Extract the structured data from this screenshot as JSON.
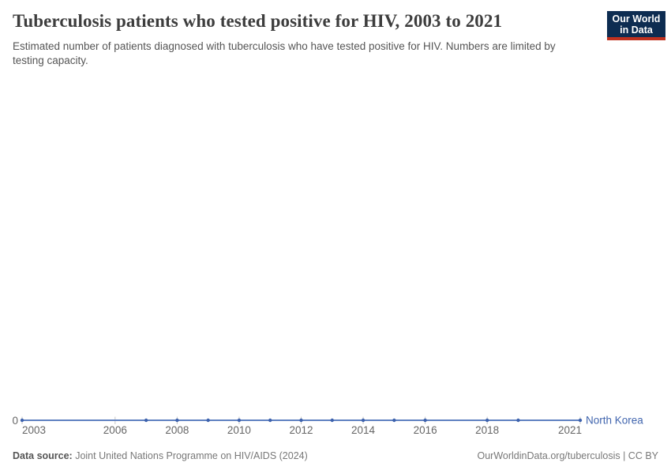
{
  "header": {
    "title": "Tuberculosis patients who tested positive for HIV, 2003 to 2021",
    "subtitle": "Estimated number of patients diagnosed with tuberculosis who have tested positive for HIV. Numbers are limited by testing capacity."
  },
  "logo": {
    "line1": "Our World",
    "line2": "in Data"
  },
  "footer": {
    "source_label": "Data source:",
    "source_text": " Joint United Nations Programme on HIV/AIDS (2024)",
    "rights": "OurWorldinData.org/tuberculosis | CC BY"
  },
  "colors": {
    "line": "#6081c1",
    "marker": "#3d62ad",
    "entity_label": "#4165ae",
    "tick_mark": "#c6c6c6",
    "tick_label": "#666666",
    "zero_label": "#666666",
    "logo_bg": "#0d2c51",
    "logo_stripe": "#c0311f"
  },
  "chart_data": {
    "type": "line",
    "title": "Tuberculosis patients who tested positive for HIV, 2003 to 2021",
    "xlabel": "",
    "ylabel": "",
    "xlim": [
      2003,
      2021
    ],
    "ylim": [
      0,
      1
    ],
    "grid": false,
    "y_zero_label": "0",
    "x_ticks": [
      2003,
      2006,
      2008,
      2010,
      2012,
      2014,
      2016,
      2018,
      2021
    ],
    "legend_position": "end-of-line",
    "series": [
      {
        "name": "North Korea",
        "x": [
          2003,
          2007,
          2008,
          2009,
          2010,
          2011,
          2012,
          2013,
          2014,
          2015,
          2016,
          2018,
          2019,
          2021
        ],
        "values": [
          0,
          0,
          0,
          0,
          0,
          0,
          0,
          0,
          0,
          0,
          0,
          0,
          0,
          0
        ]
      }
    ]
  }
}
